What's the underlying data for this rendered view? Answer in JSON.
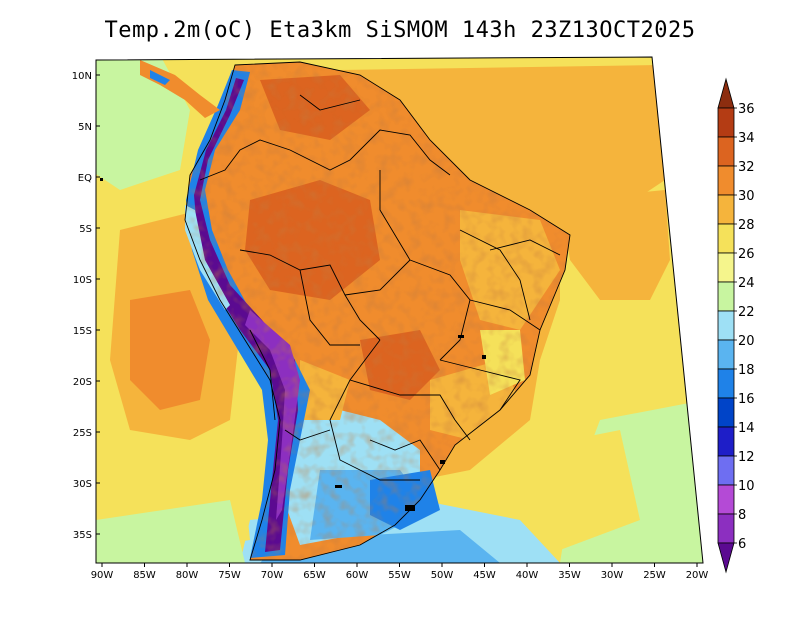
{
  "title": "Temp.2m(oC) Eta3km SiSMOM 143h 23Z13OCT2025",
  "lat_labels": [
    "10N",
    "5N",
    "EQ",
    "5S",
    "10S",
    "15S",
    "20S",
    "25S",
    "30S",
    "35S"
  ],
  "lon_labels": [
    "90W",
    "85W",
    "80W",
    "75W",
    "70W",
    "65W",
    "60W",
    "55W",
    "50W",
    "45W",
    "40W",
    "35W",
    "30W",
    "25W",
    "20W"
  ],
  "colorbar": {
    "labels": [
      "6",
      "8",
      "10",
      "12",
      "14",
      "16",
      "18",
      "20",
      "22",
      "24",
      "26",
      "28",
      "30",
      "32",
      "34",
      "36"
    ],
    "colors": [
      "#5b0a91",
      "#8c2fc0",
      "#b44ad6",
      "#6e6ef2",
      "#1e1ec8",
      "#0044c8",
      "#1f82e8",
      "#5ab4f0",
      "#9ee0f5",
      "#c8f5a0",
      "#f5f58c",
      "#f5e15a",
      "#f5b43c",
      "#f08c2d",
      "#dc6420",
      "#b43c14",
      "#8c2d0f"
    ],
    "unit": "oC"
  },
  "map": {
    "palette": {
      "ocean_warm": "#f5b43c",
      "ocean_mild": "#f5e15a",
      "ocean_cool": "#c8f5a0",
      "ocean_cold": "#5ab4f0",
      "ocean_hot": "#f08c2d",
      "land_hot": "#dc6420",
      "land_warm": "#f08c2d",
      "andes_cold": "#5b0a91",
      "andes_mid": "#1f82e8",
      "south_cool": "#9ee0f5",
      "border": "#000000"
    }
  }
}
